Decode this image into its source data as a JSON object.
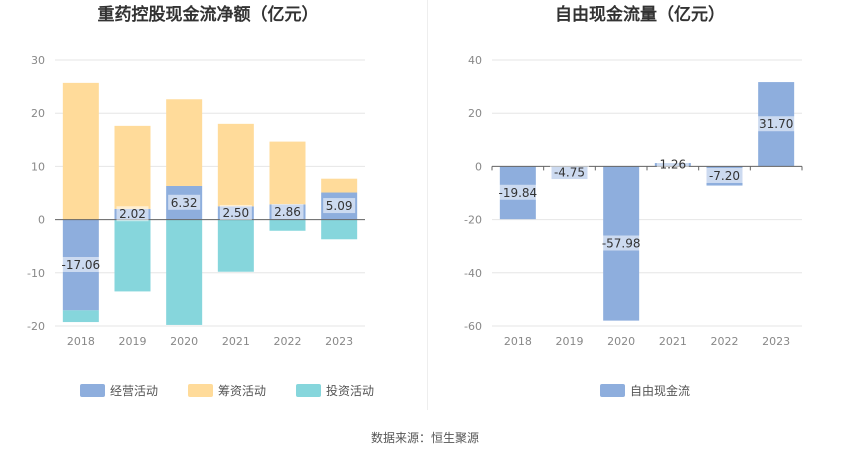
{
  "source": "数据来源：恒生聚源",
  "chart_data": [
    {
      "type": "bar",
      "stacked": true,
      "title": "重药控股现金流净额（亿元）",
      "categories": [
        "2018",
        "2019",
        "2020",
        "2021",
        "2022",
        "2023"
      ],
      "ylim": [
        -20,
        30
      ],
      "yticks": [
        -20,
        -10,
        0,
        10,
        20,
        30
      ],
      "grid": true,
      "legend": "bottom",
      "series": [
        {
          "name": "经营活动",
          "color": "#8eaedd",
          "values": [
            -17.06,
            2.02,
            6.32,
            2.5,
            2.86,
            5.09
          ],
          "labels": [
            "-17.06",
            "2.02",
            "6.32",
            "2.50",
            "2.86",
            "5.09"
          ]
        },
        {
          "name": "筹资活动",
          "color": "#ffdb9a",
          "values": [
            25.7,
            15.6,
            16.3,
            15.5,
            11.8,
            2.6
          ]
        },
        {
          "name": "投资活动",
          "color": "#86d6dc",
          "values": [
            -2.2,
            -13.5,
            -19.8,
            -9.8,
            -2.1,
            -3.7
          ]
        }
      ]
    },
    {
      "type": "bar",
      "title": "自由现金流量（亿元）",
      "categories": [
        "2018",
        "2019",
        "2020",
        "2021",
        "2022",
        "2023"
      ],
      "ylim": [
        -60,
        40
      ],
      "yticks": [
        -60,
        -40,
        -20,
        0,
        20,
        40
      ],
      "grid": true,
      "legend": "bottom",
      "series": [
        {
          "name": "自由现金流",
          "color": "#8eaedd",
          "values": [
            -19.84,
            -4.75,
            -57.98,
            1.26,
            -7.2,
            31.7
          ],
          "labels": [
            "-19.84",
            "-4.75",
            "-57.98",
            "1.26",
            "-7.20",
            "31.70"
          ]
        }
      ]
    }
  ]
}
